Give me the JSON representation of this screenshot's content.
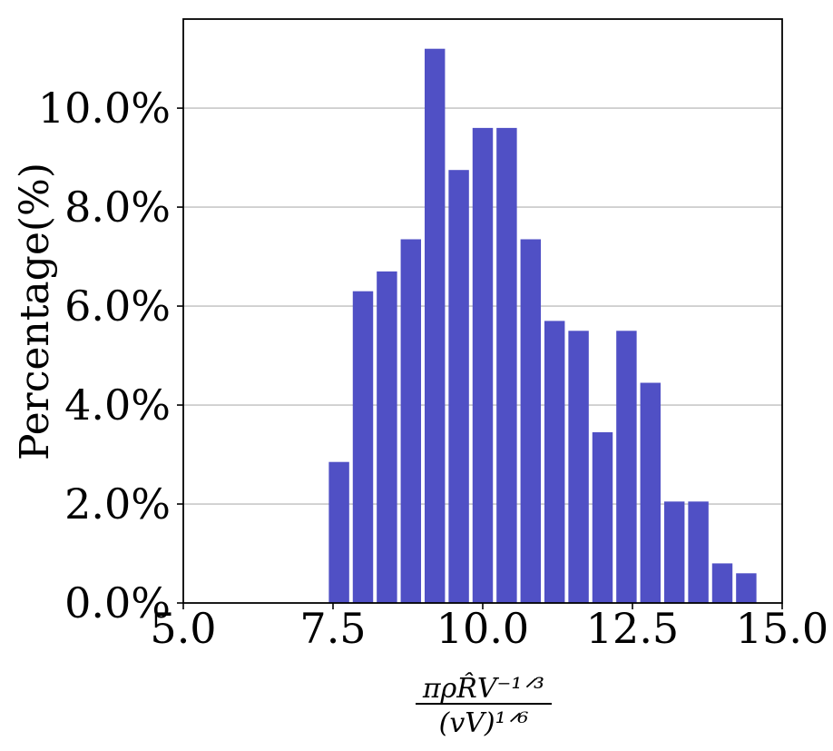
{
  "chart_data": {
    "type": "bar",
    "title": "",
    "xlabel": {
      "numerator": "πρR̂V⁻¹ᐟ³",
      "denominator": "(vV)¹ᐟ⁶"
    },
    "ylabel": "Percentage(%)",
    "xlim": [
      5.0,
      15.0
    ],
    "ylim": [
      0,
      11.8
    ],
    "xticks": [
      5.0,
      7.5,
      10.0,
      12.5,
      15.0
    ],
    "xtick_labels": [
      "5.0",
      "7.5",
      "10.0",
      "12.5",
      "15.0"
    ],
    "yticks": [
      0,
      2,
      4,
      6,
      8,
      10
    ],
    "ytick_labels": [
      "0.0%",
      "2.0%",
      "4.0%",
      "6.0%",
      "8.0%",
      "10.0%"
    ],
    "grid": "y",
    "legend": "none",
    "bar_color": "#5050c5",
    "bin_width": 0.4,
    "bars": [
      {
        "x": 7.6,
        "value": 2.85
      },
      {
        "x": 8.0,
        "value": 6.3
      },
      {
        "x": 8.4,
        "value": 6.7
      },
      {
        "x": 8.8,
        "value": 7.35
      },
      {
        "x": 9.2,
        "value": 11.2
      },
      {
        "x": 9.6,
        "value": 8.75
      },
      {
        "x": 10.0,
        "value": 9.6
      },
      {
        "x": 10.4,
        "value": 9.6
      },
      {
        "x": 10.8,
        "value": 7.35
      },
      {
        "x": 11.2,
        "value": 5.7
      },
      {
        "x": 11.6,
        "value": 5.5
      },
      {
        "x": 12.0,
        "value": 3.45
      },
      {
        "x": 12.4,
        "value": 5.5
      },
      {
        "x": 12.8,
        "value": 4.45
      },
      {
        "x": 13.2,
        "value": 2.05
      },
      {
        "x": 13.6,
        "value": 2.05
      },
      {
        "x": 14.0,
        "value": 0.8
      },
      {
        "x": 14.4,
        "value": 0.6
      }
    ]
  }
}
